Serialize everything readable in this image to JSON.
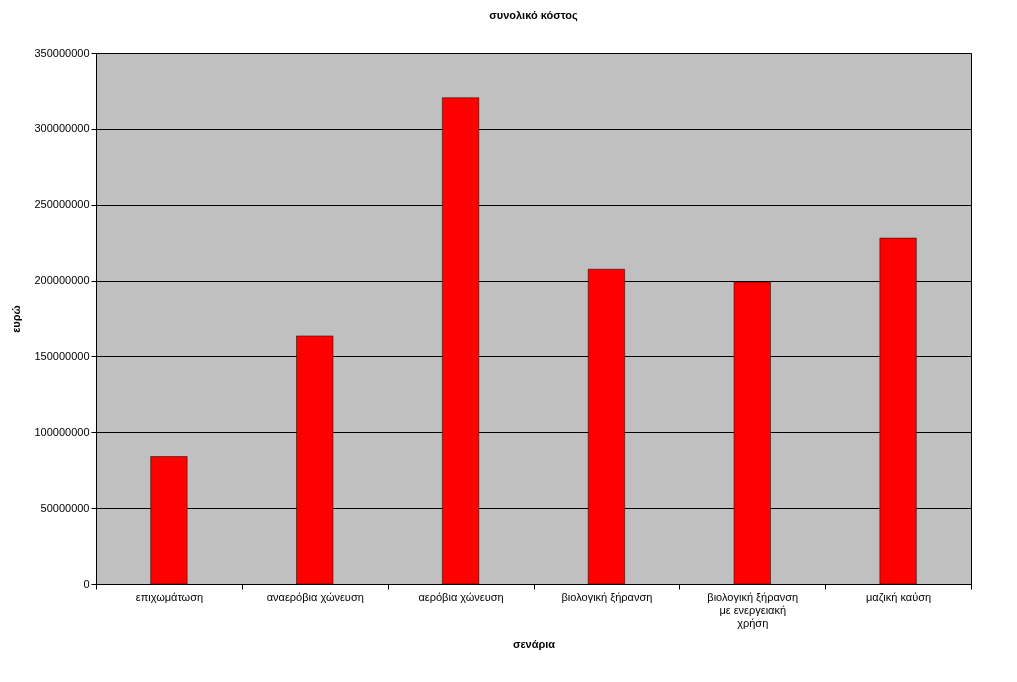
{
  "chart_data": {
    "type": "bar",
    "title": "συνολικό κόστος",
    "xlabel": "σενάρια",
    "ylabel": "ευρώ",
    "categories": [
      "επιχωμάτωση",
      "αναερόβια χώνευση",
      "αερόβια χώνευση",
      "βιολογική ξήρανση",
      "βιολογική ξήρανση με ενεργειακή χρήση",
      "μαζική καύση"
    ],
    "values": [
      84000000,
      163500000,
      320500000,
      207500000,
      199000000,
      228000000
    ],
    "color": "#ff0000",
    "ylim": [
      0,
      350000000
    ],
    "yticks": [
      0,
      50000000,
      100000000,
      150000000,
      200000000,
      250000000,
      300000000,
      350000000
    ],
    "grid": "y"
  }
}
